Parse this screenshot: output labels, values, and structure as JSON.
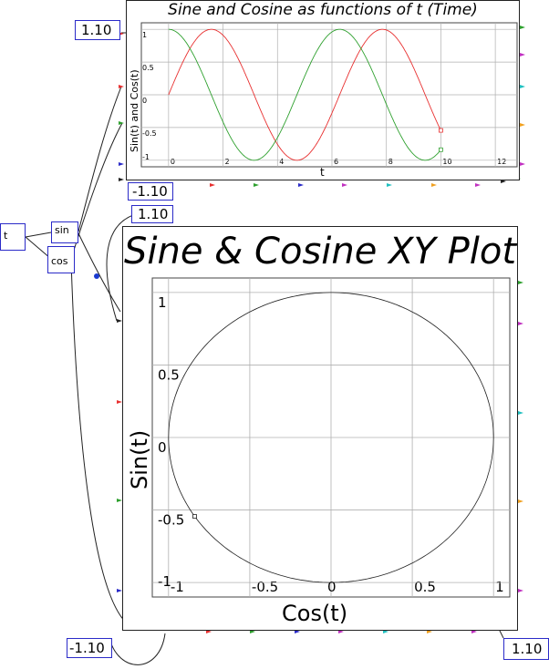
{
  "top_plot": {
    "title": "Sine and Cosine as functions of t (Time)",
    "ylabel": "Sin(t) and Cos(t)",
    "xlabel": "t",
    "y_max_box": "1.10",
    "y_min_box": "-1.10"
  },
  "xy_plot": {
    "title": "Sine & Cosine XY Plot",
    "ylabel": "Sin(t)",
    "xlabel": "Cos(t)",
    "y_max_box": "1.10",
    "x_min_box": "-1.10",
    "x_max_box": "1.10"
  },
  "blocks": {
    "source": "t",
    "sin": "sin",
    "cos": "cos"
  },
  "colors": {
    "sin_trace": "#e83030",
    "cos_trace": "#2ea02e",
    "xy_trace": "#222222",
    "box_border": "#2a2ac8",
    "grid": "#b0b0b0"
  },
  "chart_data": [
    {
      "type": "line",
      "title": "Sine and Cosine as functions of t (Time)",
      "xlabel": "t",
      "ylabel": "Sin(t) and Cos(t)",
      "xlim": [
        -1,
        12.8
      ],
      "ylim": [
        -1.1,
        1.1
      ],
      "x_ticks": [
        0,
        2,
        4,
        6,
        8,
        10,
        12
      ],
      "y_ticks": [
        -1,
        -0.5,
        0,
        0.5,
        1
      ],
      "grid": true,
      "series": [
        {
          "function": "sin",
          "x_range": [
            0,
            10
          ]
        },
        {
          "function": "cos",
          "x_range": [
            0,
            10
          ]
        }
      ]
    },
    {
      "type": "line",
      "title": "Sine & Cosine XY Plot",
      "xlabel": "Cos(t)",
      "ylabel": "Sin(t)",
      "xlim": [
        -1.1,
        1.1
      ],
      "ylim": [
        -1.1,
        1.1
      ],
      "x_ticks": [
        -1,
        -0.5,
        0,
        0.5,
        1
      ],
      "y_ticks": [
        -1,
        -0.5,
        0,
        0.5,
        1
      ],
      "grid": true,
      "series": [
        {
          "parametric": "x=cos(t), y=sin(t)",
          "t_range": [
            0,
            10
          ]
        }
      ]
    }
  ]
}
